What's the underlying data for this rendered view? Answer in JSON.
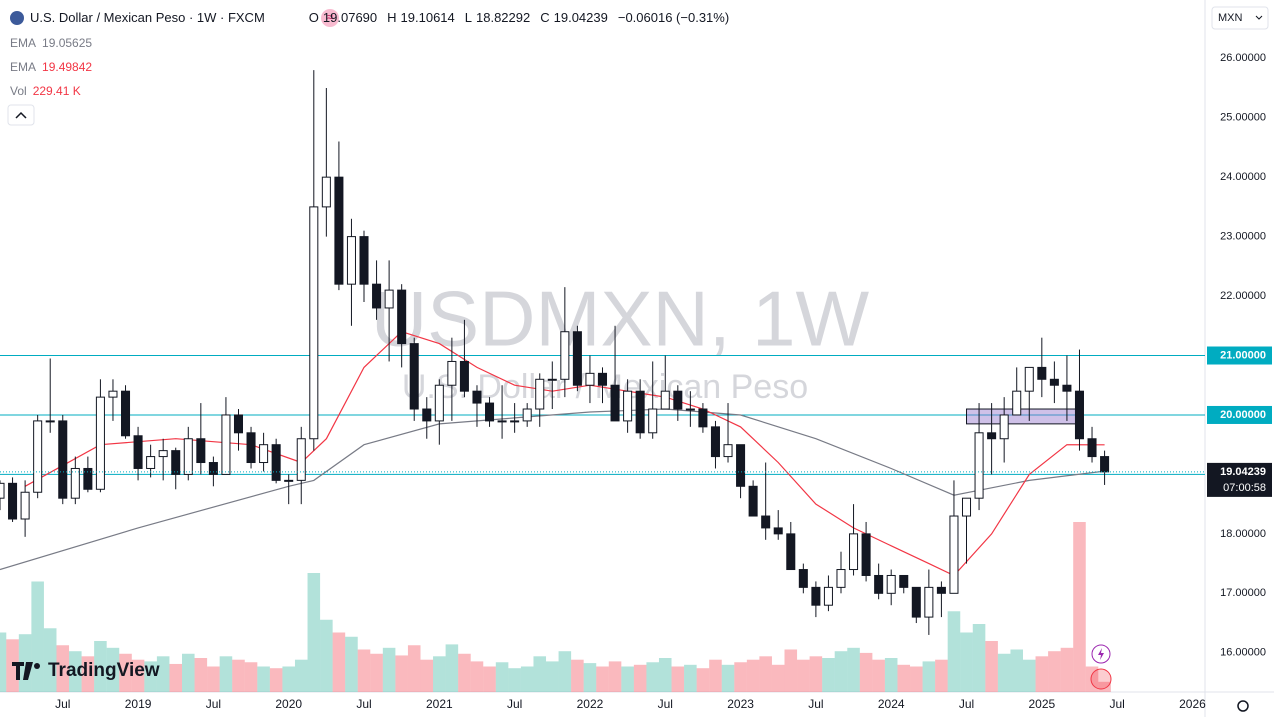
{
  "header": {
    "symbol": "U.S. Dollar / Mexican Peso · 1W · FXCM",
    "ohlc": [
      {
        "label": "O",
        "value": "19.07690"
      },
      {
        "label": "H",
        "value": "19.10614"
      },
      {
        "label": "L",
        "value": "18.82292"
      },
      {
        "label": "C",
        "value": "19.04239"
      }
    ],
    "change": "−0.06016 (−0.31%)",
    "currency": "MXN"
  },
  "watermark": {
    "title": "USDMXN, 1W",
    "subtitle": "U.S. Dollar / Mexican Peso"
  },
  "logo": "TradingView",
  "chart_data": {
    "type": "candlestick",
    "x": [
      "2018-02",
      "2018-03",
      "2018-04",
      "2018-05",
      "2018-06",
      "2018-07",
      "2018-08",
      "2018-09",
      "2018-10",
      "2018-11",
      "2018-12",
      "2019-01",
      "2019-02",
      "2019-03",
      "2019-04",
      "2019-05",
      "2019-06",
      "2019-07",
      "2019-08",
      "2019-09",
      "2019-10",
      "2019-11",
      "2019-12",
      "2020-01",
      "2020-02",
      "2020-03",
      "2020-04",
      "2020-05",
      "2020-06",
      "2020-07",
      "2020-08",
      "2020-09",
      "2020-10",
      "2020-11",
      "2020-12",
      "2021-01",
      "2021-02",
      "2021-03",
      "2021-04",
      "2021-05",
      "2021-06",
      "2021-07",
      "2021-08",
      "2021-09",
      "2021-10",
      "2021-11",
      "2021-12",
      "2022-01",
      "2022-02",
      "2022-03",
      "2022-04",
      "2022-05",
      "2022-06",
      "2022-07",
      "2022-08",
      "2022-09",
      "2022-10",
      "2022-11",
      "2022-12",
      "2023-01",
      "2023-02",
      "2023-03",
      "2023-04",
      "2023-05",
      "2023-06",
      "2023-07",
      "2023-08",
      "2023-09",
      "2023-10",
      "2023-11",
      "2023-12",
      "2024-01",
      "2024-02",
      "2024-03",
      "2024-04",
      "2024-05",
      "2024-06",
      "2024-07",
      "2024-08",
      "2024-09",
      "2024-10",
      "2024-11",
      "2024-12",
      "2025-01",
      "2025-02",
      "2025-03",
      "2025-04",
      "2025-05",
      "2025-06"
    ],
    "open": [
      18.6,
      18.85,
      18.25,
      18.7,
      19.9,
      19.9,
      18.6,
      19.1,
      18.75,
      20.3,
      20.4,
      19.65,
      19.1,
      19.3,
      19.4,
      19.0,
      19.6,
      19.2,
      19.0,
      20.0,
      19.7,
      19.2,
      19.5,
      18.9,
      18.9,
      19.6,
      23.5,
      24.0,
      22.2,
      23.0,
      22.2,
      21.8,
      22.1,
      21.2,
      20.1,
      19.9,
      20.5,
      20.9,
      20.4,
      20.2,
      19.9,
      19.9,
      19.9,
      20.1,
      20.6,
      20.6,
      21.4,
      20.5,
      20.7,
      20.5,
      19.9,
      20.4,
      19.7,
      20.1,
      20.4,
      20.1,
      20.1,
      19.8,
      19.3,
      19.5,
      18.8,
      18.3,
      18.1,
      18.0,
      17.4,
      17.1,
      16.8,
      17.1,
      17.4,
      18.0,
      17.3,
      17.0,
      17.3,
      17.1,
      16.6,
      17.1,
      17.0,
      18.3,
      18.6,
      19.7,
      19.6,
      20.0,
      20.4,
      20.8,
      20.6,
      20.5,
      20.4,
      19.6,
      19.3
    ],
    "high": [
      18.9,
      18.95,
      18.9,
      20.0,
      20.95,
      20.0,
      19.3,
      19.3,
      20.6,
      20.6,
      20.5,
      19.8,
      19.5,
      19.6,
      19.45,
      19.8,
      20.2,
      19.3,
      20.3,
      20.1,
      19.8,
      19.7,
      19.6,
      19.0,
      19.8,
      25.8,
      25.5,
      24.6,
      23.3,
      23.1,
      22.6,
      22.6,
      22.2,
      21.3,
      20.3,
      20.6,
      21.3,
      21.6,
      20.5,
      20.3,
      20.5,
      20.2,
      20.2,
      20.7,
      20.9,
      22.15,
      21.5,
      21.0,
      20.8,
      21.5,
      20.6,
      20.6,
      20.9,
      21.0,
      20.5,
      20.4,
      20.2,
      19.9,
      20.2,
      19.5,
      18.9,
      19.2,
      18.4,
      18.2,
      17.5,
      17.2,
      17.3,
      17.7,
      18.5,
      18.2,
      17.5,
      17.4,
      17.3,
      17.1,
      17.4,
      17.2,
      18.9,
      18.6,
      20.2,
      20.2,
      20.3,
      20.8,
      20.8,
      21.3,
      20.9,
      21.0,
      21.1,
      19.8,
      19.4
    ],
    "low": [
      18.4,
      18.2,
      17.95,
      18.6,
      19.7,
      18.5,
      18.5,
      18.7,
      18.7,
      19.9,
      19.6,
      18.9,
      18.95,
      18.9,
      18.75,
      18.9,
      19.0,
      18.8,
      19.0,
      19.4,
      19.1,
      19.05,
      18.85,
      18.5,
      18.5,
      19.4,
      23.0,
      22.1,
      21.5,
      21.9,
      21.6,
      20.9,
      20.8,
      19.9,
      19.6,
      19.5,
      19.9,
      20.3,
      19.8,
      19.8,
      19.6,
      19.7,
      19.8,
      19.8,
      20.1,
      20.3,
      20.4,
      20.2,
      20.2,
      19.9,
      19.7,
      19.6,
      19.6,
      20.1,
      19.9,
      19.8,
      19.7,
      19.1,
      19.2,
      18.6,
      18.3,
      17.9,
      17.9,
      17.4,
      17.0,
      16.6,
      16.7,
      17.0,
      17.3,
      17.2,
      16.9,
      16.8,
      17.0,
      16.5,
      16.3,
      16.6,
      17.0,
      17.5,
      18.4,
      19.0,
      19.2,
      20.0,
      19.9,
      20.3,
      20.2,
      19.9,
      19.4,
      19.2,
      18.82292
    ],
    "close": [
      18.85,
      18.25,
      18.7,
      19.9,
      19.9,
      18.6,
      19.1,
      18.75,
      20.3,
      20.4,
      19.65,
      19.1,
      19.3,
      19.4,
      19.0,
      19.6,
      19.2,
      19.0,
      20.0,
      19.7,
      19.2,
      19.5,
      18.9,
      18.9,
      19.6,
      23.5,
      24.0,
      22.2,
      23.0,
      22.2,
      21.8,
      22.1,
      21.2,
      20.1,
      19.9,
      20.5,
      20.9,
      20.4,
      20.2,
      19.9,
      19.9,
      19.9,
      20.1,
      20.6,
      20.6,
      21.4,
      20.5,
      20.7,
      20.5,
      19.9,
      20.4,
      19.7,
      20.1,
      20.4,
      20.1,
      20.1,
      19.8,
      19.3,
      19.5,
      18.8,
      18.3,
      18.1,
      18.0,
      17.4,
      17.1,
      16.8,
      17.1,
      17.4,
      18.0,
      17.3,
      17.0,
      17.3,
      17.1,
      16.6,
      17.1,
      17.0,
      18.3,
      18.6,
      19.7,
      19.6,
      20.0,
      20.4,
      20.8,
      20.6,
      20.5,
      20.4,
      19.6,
      19.3,
      19.04239
    ],
    "ema": [
      {
        "name": "EMA",
        "last": "19.05625",
        "color": "#787b86",
        "x": [
          "2018-02",
          "2019-01",
          "2020-01",
          "2020-03",
          "2020-07",
          "2021-01",
          "2021-07",
          "2022-01",
          "2022-07",
          "2023-01",
          "2023-07",
          "2024-01",
          "2024-06",
          "2024-12",
          "2025-06"
        ],
        "values": [
          17.4,
          18.1,
          18.8,
          18.9,
          19.5,
          19.85,
          19.95,
          20.05,
          20.1,
          20.0,
          19.6,
          19.1,
          18.65,
          18.9,
          19.05625
        ]
      },
      {
        "name": "EMA",
        "last": "19.49842",
        "color": "#f23645",
        "x": [
          "2018-04",
          "2018-10",
          "2019-04",
          "2019-10",
          "2020-02",
          "2020-04",
          "2020-07",
          "2020-10",
          "2021-01",
          "2021-04",
          "2021-07",
          "2021-10",
          "2022-01",
          "2022-04",
          "2022-07",
          "2022-10",
          "2023-01",
          "2023-04",
          "2023-07",
          "2023-10",
          "2024-01",
          "2024-04",
          "2024-06",
          "2024-09",
          "2024-12",
          "2025-03",
          "2025-06"
        ],
        "values": [
          18.8,
          19.5,
          19.6,
          19.5,
          19.2,
          19.6,
          20.8,
          21.4,
          21.2,
          20.8,
          20.5,
          20.4,
          20.5,
          20.4,
          20.3,
          20.1,
          19.8,
          19.2,
          18.5,
          18.1,
          17.8,
          17.5,
          17.3,
          18.0,
          19.0,
          19.5,
          19.49842
        ]
      }
    ],
    "volume": {
      "name": "Vol",
      "last": "229.41 K",
      "up_color": "rgba(34,171,148,0.35)",
      "down_color": "rgba(242,54,69,0.35)",
      "values": [
        700,
        620,
        680,
        1300,
        750,
        550,
        480,
        420,
        600,
        520,
        450,
        380,
        360,
        420,
        330,
        450,
        400,
        300,
        420,
        380,
        350,
        300,
        280,
        300,
        380,
        1400,
        850,
        700,
        650,
        500,
        450,
        520,
        430,
        550,
        380,
        420,
        560,
        450,
        360,
        300,
        350,
        280,
        300,
        420,
        360,
        480,
        380,
        340,
        300,
        360,
        300,
        320,
        350,
        400,
        300,
        320,
        280,
        380,
        320,
        350,
        380,
        420,
        320,
        500,
        380,
        420,
        400,
        480,
        520,
        460,
        380,
        400,
        320,
        300,
        360,
        380,
        950,
        700,
        800,
        600,
        450,
        500,
        380,
        420,
        480,
        520,
        2000,
        300,
        120
      ]
    },
    "zones": [
      {
        "x": [
          "2024-07",
          "2025-04"
        ],
        "y": [
          19.85,
          20.1
        ],
        "color": "rgba(149,117,205,0.45)"
      }
    ],
    "levels": [
      {
        "value": 21,
        "label": "21.00000"
      },
      {
        "value": 20,
        "label": "20.00000"
      },
      {
        "value": 19,
        "label": "19.00000"
      }
    ],
    "level_color": "#00acc1",
    "last_price": {
      "value": 19.04239,
      "label": "19.04239",
      "countdown": "07:00:58"
    },
    "xlim": [
      "2018-02",
      "2026-02"
    ],
    "xticks": [
      {
        "value": "2018-07",
        "label": "Jul"
      },
      {
        "value": "2019-01",
        "label": "2019"
      },
      {
        "value": "2019-07",
        "label": "Jul"
      },
      {
        "value": "2020-01",
        "label": "2020"
      },
      {
        "value": "2020-07",
        "label": "Jul"
      },
      {
        "value": "2021-01",
        "label": "2021"
      },
      {
        "value": "2021-07",
        "label": "Jul"
      },
      {
        "value": "2022-01",
        "label": "2022"
      },
      {
        "value": "2022-07",
        "label": "Jul"
      },
      {
        "value": "2023-01",
        "label": "2023"
      },
      {
        "value": "2023-07",
        "label": "Jul"
      },
      {
        "value": "2024-01",
        "label": "2024"
      },
      {
        "value": "2024-07",
        "label": "Jul"
      },
      {
        "value": "2025-01",
        "label": "2025"
      },
      {
        "value": "2025-07",
        "label": "Jul"
      },
      {
        "value": "2026-01",
        "label": "2026"
      }
    ],
    "ylim": [
      15.34,
      26.98
    ],
    "yticks": [
      {
        "value": 16,
        "label": "16.00000"
      },
      {
        "value": 17,
        "label": "17.00000"
      },
      {
        "value": 18,
        "label": "18.00000"
      },
      {
        "value": 22,
        "label": "22.00000"
      },
      {
        "value": 23,
        "label": "23.00000"
      },
      {
        "value": 24,
        "label": "24.00000"
      },
      {
        "value": 25,
        "label": "25.00000"
      },
      {
        "value": 26,
        "label": "26.00000"
      }
    ],
    "grid": false
  }
}
